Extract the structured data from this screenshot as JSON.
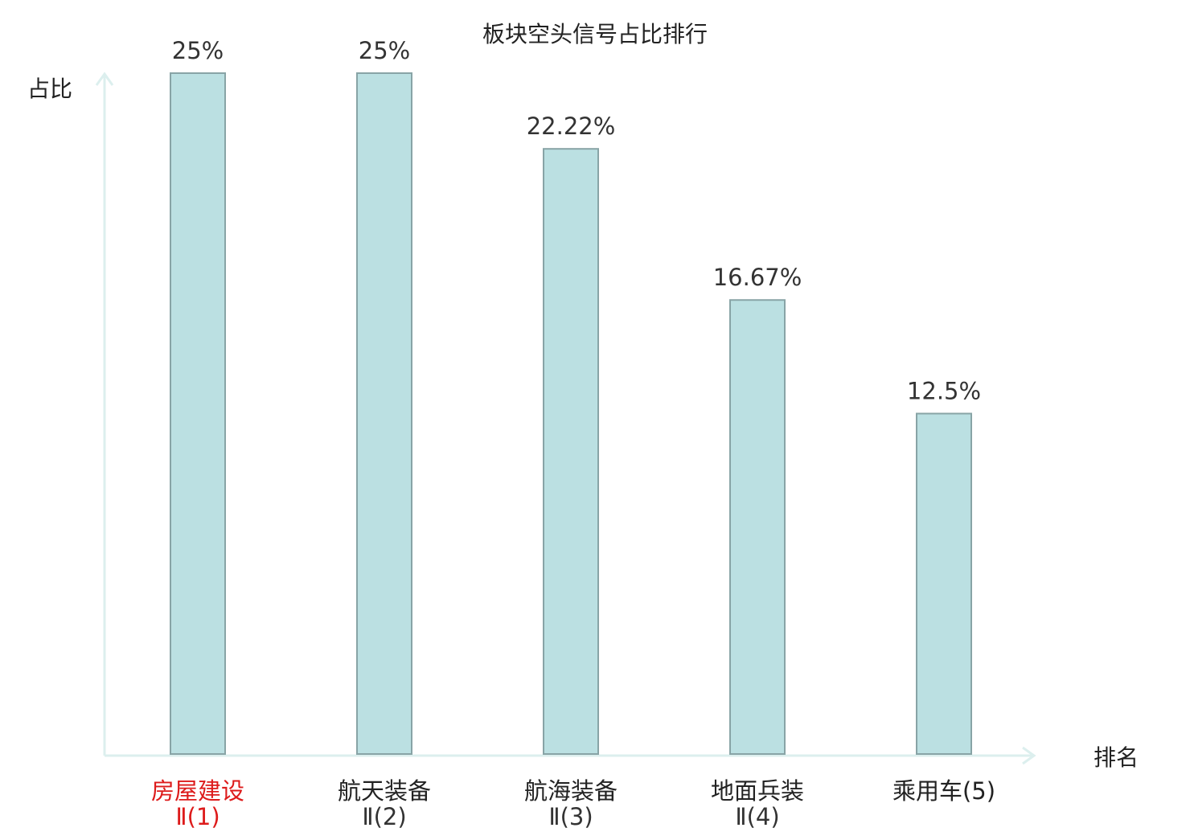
{
  "chart_data": {
    "type": "bar",
    "title": "板块空头信号占比排行",
    "ylabel": "占比",
    "xlabel": "排名",
    "ylim": [
      0,
      25
    ],
    "grid": false,
    "categories": [
      {
        "name": "房屋建设",
        "sub": "Ⅱ(1)",
        "highlight": true
      },
      {
        "name": "航天装备",
        "sub": "Ⅱ(2)",
        "highlight": false
      },
      {
        "name": "航海装备",
        "sub": "Ⅱ(3)",
        "highlight": false
      },
      {
        "name": "地面兵装",
        "sub": "Ⅱ(4)",
        "highlight": false
      },
      {
        "name": "乘用车(5)",
        "sub": "",
        "highlight": false
      }
    ],
    "values": [
      25,
      25,
      22.22,
      16.67,
      12.5
    ],
    "value_labels": [
      "25%",
      "25%",
      "22.22%",
      "16.67%",
      "12.5%"
    ],
    "colors": {
      "bar_fill": "#bbe0e2",
      "bar_stroke": "#88a4a6",
      "axis": "#dcefee",
      "highlight_text": "#dd1b1b"
    }
  }
}
